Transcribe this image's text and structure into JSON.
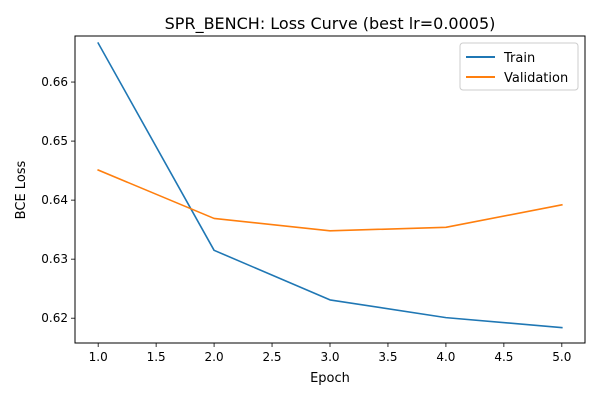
{
  "chart_data": {
    "type": "line",
    "title": "SPR_BENCH: Loss Curve (best lr=0.0005)",
    "xlabel": "Epoch",
    "ylabel": "BCE Loss",
    "xlim": [
      0.8,
      5.2
    ],
    "ylim": [
      0.6158,
      0.6678
    ],
    "x_ticks": [
      1.0,
      1.5,
      2.0,
      2.5,
      3.0,
      3.5,
      4.0,
      4.5,
      5.0
    ],
    "x_tick_labels": [
      "1.0",
      "1.5",
      "2.0",
      "2.5",
      "3.0",
      "3.5",
      "4.0",
      "4.5",
      "5.0"
    ],
    "y_ticks": [
      0.62,
      0.63,
      0.64,
      0.65,
      0.66
    ],
    "y_tick_labels": [
      "0.62",
      "0.63",
      "0.64",
      "0.65",
      "0.66"
    ],
    "grid": false,
    "legend_position": "top-right",
    "x": [
      1,
      2,
      3,
      4,
      5
    ],
    "series": [
      {
        "name": "Train",
        "color": "#1f77b4",
        "values": [
          0.6666,
          0.6315,
          0.6231,
          0.6201,
          0.6184
        ]
      },
      {
        "name": "Validation",
        "color": "#ff7f0e",
        "values": [
          0.6451,
          0.6369,
          0.6348,
          0.6354,
          0.6392
        ]
      }
    ]
  }
}
